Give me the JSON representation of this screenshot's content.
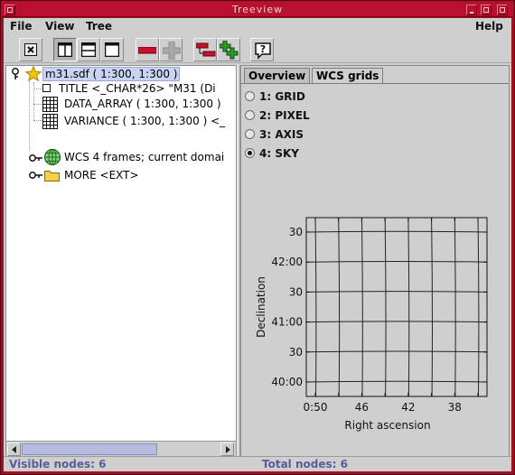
{
  "window": {
    "title": "Treeview"
  },
  "menubar": {
    "file": "File",
    "view": "View",
    "tree": "Tree",
    "help": "Help"
  },
  "toolbar": {
    "buttons": [
      "close-icon",
      "split-vertical-icon",
      "split-horizontal-icon",
      "single-pane-icon",
      "collapse-minus-icon",
      "expand-plus-icon",
      "collapse-tree-icon",
      "expand-tree-icon",
      "help-icon"
    ]
  },
  "tree": {
    "root": {
      "label": "m31.sdf  ( 1:300, 1:300 )",
      "icon": "star-icon"
    },
    "children": [
      {
        "label": "TITLE  <_CHAR*26>  \"M31 (Di",
        "icon": "small-square-icon"
      },
      {
        "label": "DATA_ARRAY  ( 1:300, 1:300 )",
        "icon": "grid-icon"
      },
      {
        "label": "VARIANCE  ( 1:300, 1:300 )  <_",
        "icon": "grid-icon"
      }
    ],
    "siblings": [
      {
        "label": "WCS  4 frames; current domai",
        "icon": "globe-icon"
      },
      {
        "label": "MORE  <EXT>",
        "icon": "folder-icon"
      }
    ]
  },
  "detail": {
    "tabs": [
      "Overview",
      "WCS grids"
    ],
    "active_tab": "WCS grids",
    "frames": [
      "1: GRID",
      "2: PIXEL",
      "3: AXIS",
      "4: SKY"
    ],
    "selected_frame": "4: SKY"
  },
  "plot": {
    "y_ticks": [
      "30",
      "42:00",
      "30",
      "41:00",
      "30",
      "40:00"
    ],
    "x_ticks": [
      "0:50",
      "46",
      "42",
      "38"
    ],
    "x_label": "Right ascension",
    "y_label": "Declination"
  },
  "chart_data": {
    "type": "line",
    "title": "",
    "xlabel": "Right ascension",
    "ylabel": "Declination",
    "x_tick_labels": [
      "0:50",
      "46",
      "42",
      "38"
    ],
    "y_tick_labels": [
      "30",
      "42:00",
      "30",
      "41:00",
      "30",
      "40:00"
    ],
    "grid": true
  },
  "status": {
    "visible": "Visible nodes: 6",
    "total": "Total nodes: 6"
  },
  "colors": {
    "frame": "#a01028",
    "panel": "#cfcfcf",
    "selection": "#c9d3f2",
    "status_text": "#5b5b9a",
    "minus_red": "#c8102e",
    "plus_green": "#2a9a2a"
  }
}
